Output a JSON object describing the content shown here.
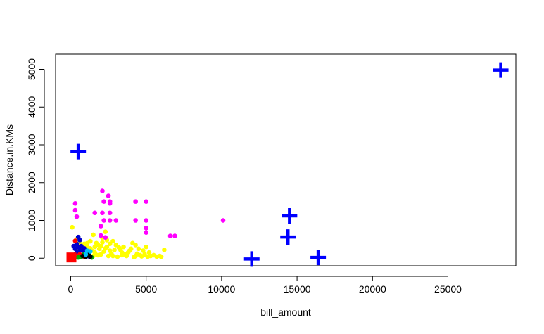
{
  "chart_data": {
    "type": "scatter",
    "title": "",
    "xlabel": "bill_amount",
    "ylabel": "Distance.in.KMs",
    "xlim": [
      -1000,
      29500
    ],
    "ylim": [
      -200,
      5400
    ],
    "xticks": [
      0,
      5000,
      10000,
      15000,
      20000,
      25000
    ],
    "yticks": [
      0,
      1000,
      2000,
      3000,
      4000,
      5000
    ],
    "grid": false,
    "legend": "none",
    "series": [
      {
        "marker": "circle",
        "color": "#ffff00",
        "points": [
          [
            100,
            820
          ],
          [
            400,
            500
          ],
          [
            600,
            420
          ],
          [
            900,
            380
          ],
          [
            1100,
            300
          ],
          [
            1300,
            450
          ],
          [
            1500,
            620
          ],
          [
            1700,
            400
          ],
          [
            1900,
            250
          ],
          [
            2100,
            540
          ],
          [
            2300,
            700
          ],
          [
            2400,
            300
          ],
          [
            2600,
            200
          ],
          [
            2800,
            450
          ],
          [
            3000,
            350
          ],
          [
            3200,
            280
          ],
          [
            3400,
            150
          ],
          [
            3600,
            100
          ],
          [
            3900,
            200
          ],
          [
            4100,
            400
          ],
          [
            4300,
            350
          ],
          [
            4500,
            250
          ],
          [
            4800,
            200
          ],
          [
            5000,
            300
          ],
          [
            5200,
            150
          ],
          [
            5500,
            80
          ],
          [
            5900,
            60
          ],
          [
            6200,
            220
          ],
          [
            2000,
            100
          ],
          [
            1800,
            80
          ],
          [
            2500,
            60
          ],
          [
            3100,
            40
          ],
          [
            3700,
            60
          ],
          [
            4200,
            30
          ],
          [
            4600,
            80
          ],
          [
            1400,
            200
          ],
          [
            1600,
            150
          ],
          [
            1200,
            120
          ],
          [
            1000,
            180
          ],
          [
            800,
            220
          ],
          [
            2200,
            180
          ],
          [
            2700,
            120
          ],
          [
            3300,
            220
          ],
          [
            3500,
            300
          ],
          [
            4000,
            250
          ],
          [
            4400,
            120
          ],
          [
            4900,
            100
          ],
          [
            5300,
            60
          ],
          [
            5700,
            40
          ],
          [
            1600,
            300
          ],
          [
            2000,
            320
          ],
          [
            2300,
            260
          ],
          [
            2600,
            380
          ],
          [
            2900,
            220
          ],
          [
            1300,
            260
          ],
          [
            1100,
            400
          ],
          [
            700,
            300
          ],
          [
            500,
            250
          ],
          [
            2100,
            420
          ],
          [
            2400,
            480
          ],
          [
            1800,
            360
          ],
          [
            3800,
            150
          ],
          [
            4700,
            50
          ],
          [
            5100,
            40
          ],
          [
            6000,
            40
          ],
          [
            900,
            100
          ],
          [
            1500,
            60
          ],
          [
            2800,
            60
          ],
          [
            3400,
            80
          ],
          [
            4300,
            60
          ]
        ]
      },
      {
        "marker": "circle",
        "color": "#ff00ff",
        "points": [
          [
            300,
            1450
          ],
          [
            300,
            1270
          ],
          [
            400,
            1100
          ],
          [
            1600,
            1200
          ],
          [
            2100,
            1780
          ],
          [
            2200,
            1500
          ],
          [
            2100,
            1200
          ],
          [
            2500,
            1650
          ],
          [
            2600,
            1500
          ],
          [
            2600,
            1450
          ],
          [
            2600,
            1200
          ],
          [
            2200,
            1000
          ],
          [
            2600,
            1000
          ],
          [
            3000,
            1000
          ],
          [
            2000,
            850
          ],
          [
            4300,
            1500
          ],
          [
            5000,
            1500
          ],
          [
            4300,
            1000
          ],
          [
            5000,
            1000
          ],
          [
            5000,
            800
          ],
          [
            5000,
            680
          ],
          [
            6600,
            590
          ],
          [
            6900,
            590
          ],
          [
            10100,
            1000
          ],
          [
            2000,
            600
          ],
          [
            2300,
            550
          ]
        ]
      },
      {
        "marker": "circle",
        "color": "#0000cd",
        "points": [
          [
            200,
            320
          ],
          [
            300,
            250
          ],
          [
            400,
            380
          ],
          [
            500,
            300
          ],
          [
            600,
            220
          ],
          [
            700,
            320
          ],
          [
            600,
            480
          ],
          [
            500,
            560
          ],
          [
            800,
            200
          ],
          [
            900,
            260
          ],
          [
            1000,
            150
          ],
          [
            1100,
            80
          ],
          [
            400,
            150
          ],
          [
            300,
            100
          ],
          [
            1200,
            50
          ]
        ]
      },
      {
        "marker": "circle",
        "color": "#ff0000",
        "points": [
          [
            300,
            460
          ],
          [
            400,
            60
          ],
          [
            900,
            40
          ],
          [
            1100,
            130
          ],
          [
            600,
            100
          ]
        ]
      },
      {
        "marker": "circle",
        "color": "#00aa00",
        "points": [
          [
            700,
            40
          ],
          [
            900,
            100
          ],
          [
            1200,
            80
          ],
          [
            1400,
            20
          ],
          [
            500,
            20
          ]
        ]
      },
      {
        "marker": "circle",
        "color": "#000000",
        "points": [
          [
            200,
            60
          ],
          [
            800,
            60
          ],
          [
            1000,
            40
          ],
          [
            1300,
            40
          ],
          [
            1200,
            130
          ]
        ]
      },
      {
        "marker": "circle",
        "color": "#00bfff",
        "points": [
          [
            1100,
            200
          ],
          [
            1300,
            180
          ],
          [
            1000,
            100
          ]
        ]
      },
      {
        "marker": "square",
        "color": "#ff0000",
        "points": [
          [
            50,
            20
          ]
        ]
      },
      {
        "marker": "plus",
        "color": "#0000ff",
        "points": [
          [
            500,
            2820
          ],
          [
            12000,
            -20
          ],
          [
            14400,
            560
          ],
          [
            14500,
            1120
          ],
          [
            16400,
            20
          ],
          [
            28500,
            4980
          ]
        ]
      }
    ]
  }
}
